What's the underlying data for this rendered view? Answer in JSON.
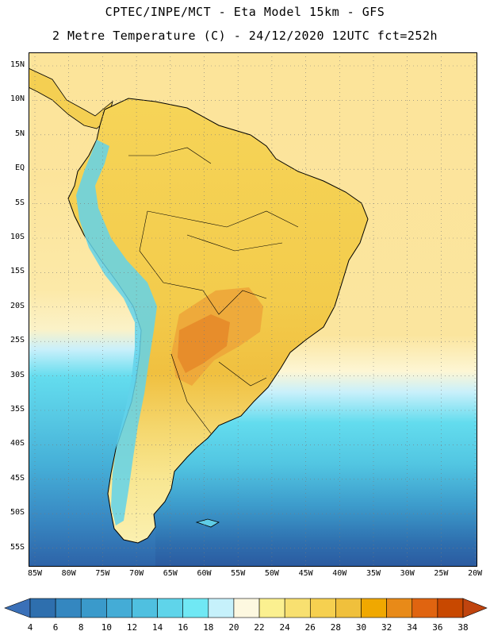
{
  "header": {
    "line1": "CPTEC/INPE/MCT -  Eta Model 15km - GFS",
    "line2": "2 Metre Temperature (C) - 24/12/2020 12UTC fct=252h"
  },
  "axes": {
    "lat_labels": [
      "15N",
      "10N",
      "5N",
      "EQ",
      "5S",
      "10S",
      "15S",
      "20S",
      "25S",
      "30S",
      "35S",
      "40S",
      "45S",
      "50S",
      "55S"
    ],
    "lon_labels": [
      "85W",
      "80W",
      "75W",
      "70W",
      "65W",
      "60W",
      "55W",
      "50W",
      "45W",
      "40W",
      "35W",
      "30W",
      "25W",
      "20W"
    ]
  },
  "colorbar": {
    "labels": [
      "4",
      "6",
      "8",
      "10",
      "12",
      "14",
      "16",
      "18",
      "20",
      "22",
      "24",
      "26",
      "28",
      "30",
      "32",
      "34",
      "36",
      "38"
    ],
    "colors": [
      "#2e6fae",
      "#3487c0",
      "#3a9acb",
      "#44acd6",
      "#4fc0e0",
      "#5fd4ea",
      "#70e8f4",
      "#c6f1fb",
      "#fdf8e0",
      "#fbf090",
      "#f8e070",
      "#f6d050",
      "#f0c03c",
      "#f0a800",
      "#e88a18",
      "#e06410",
      "#c84800"
    ],
    "under_color": "#3a70b8",
    "over_color": "#c0440e"
  }
}
